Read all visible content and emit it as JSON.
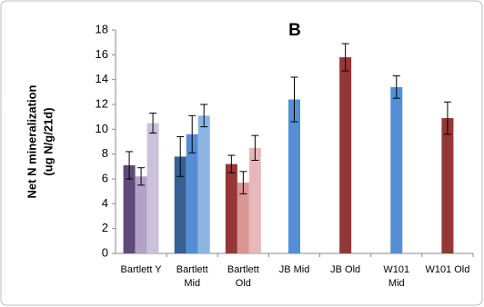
{
  "chart_data": {
    "type": "grouped-bar-error",
    "title": "B",
    "y_label": [
      "Net N mineralization",
      "(ug N/g/21d)"
    ],
    "categories": [
      [
        "Bartlett Y"
      ],
      [
        "Bartlett",
        "Mid"
      ],
      [
        "Bartlett",
        "Old"
      ],
      [
        "JB Mid"
      ],
      [
        "JB Old"
      ],
      [
        "W101",
        "Mid"
      ],
      [
        "W101 Old"
      ]
    ],
    "values": [
      [
        7.1,
        6.2,
        10.5
      ],
      [
        7.8,
        9.6,
        11.1
      ],
      [
        7.2,
        5.7,
        8.5
      ],
      [
        12.4
      ],
      [
        15.8
      ],
      [
        13.4
      ],
      [
        10.9
      ]
    ],
    "errors": [
      [
        1.1,
        0.7,
        0.8
      ],
      [
        1.6,
        1.5,
        0.9
      ],
      [
        0.7,
        0.9,
        1.0
      ],
      [
        1.8
      ],
      [
        1.1
      ],
      [
        0.9
      ],
      [
        1.3
      ]
    ],
    "colors": [
      [
        "#604a7b",
        "#b3a2c7",
        "#ccc1da"
      ],
      [
        "#376092",
        "#558ed5",
        "#8eb4e3"
      ],
      [
        "#953735",
        "#d99694",
        "#e6b9b8"
      ],
      [
        "#558ed5"
      ],
      [
        "#953735"
      ],
      [
        "#558ed5"
      ],
      [
        "#953735"
      ]
    ],
    "ylim": [
      0,
      18
    ],
    "yticks": [
      0,
      2,
      4,
      6,
      8,
      10,
      12,
      14,
      16,
      18
    ],
    "grid": false
  }
}
